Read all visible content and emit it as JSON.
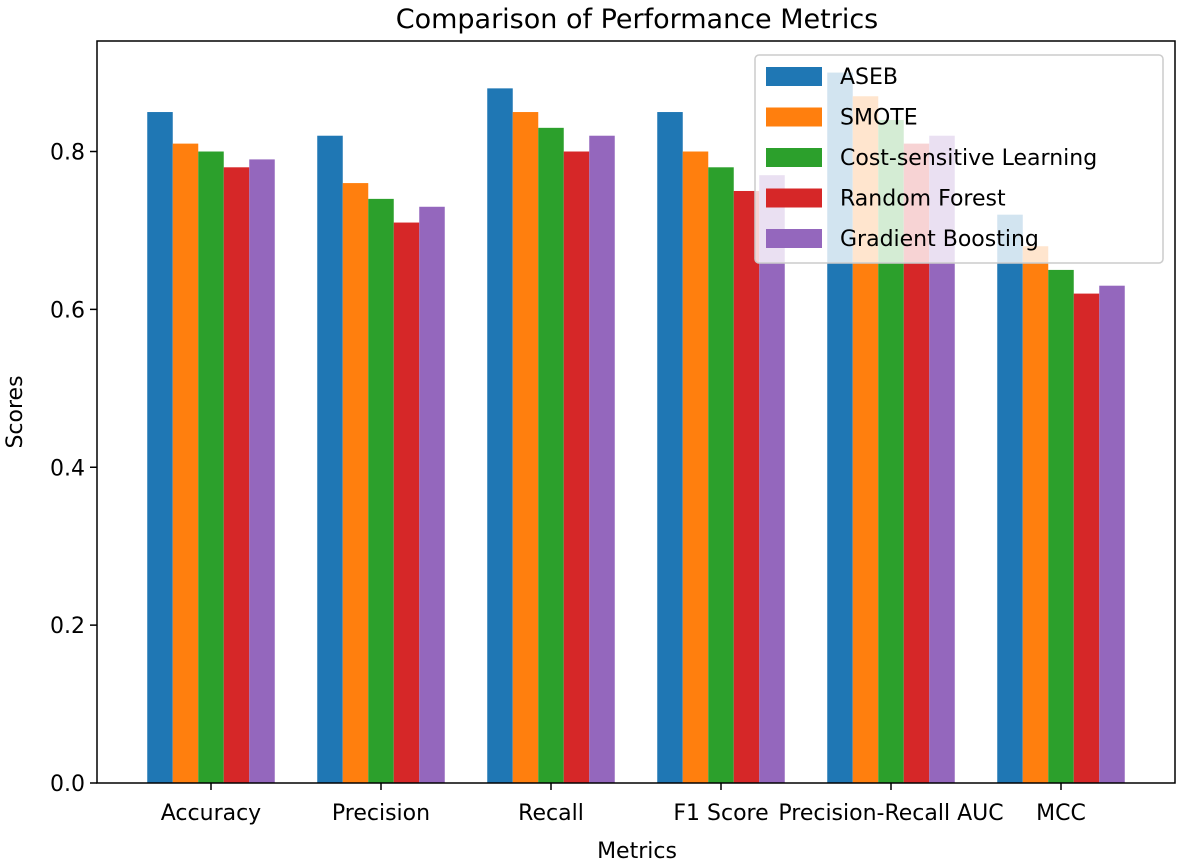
{
  "chart_data": {
    "type": "bar",
    "title": "Comparison of Performance Metrics",
    "xlabel": "Metrics",
    "ylabel": "Scores",
    "categories": [
      "Accuracy",
      "Precision",
      "Recall",
      "F1 Score",
      "Precision-Recall AUC",
      "MCC"
    ],
    "series": [
      {
        "name": "ASEB",
        "color": "#1f77b4",
        "values": [
          0.85,
          0.82,
          0.88,
          0.85,
          0.9,
          0.72
        ]
      },
      {
        "name": "SMOTE",
        "color": "#ff7f0e",
        "values": [
          0.81,
          0.76,
          0.85,
          0.8,
          0.87,
          0.68
        ]
      },
      {
        "name": "Cost-sensitive Learning",
        "color": "#2ca02c",
        "values": [
          0.8,
          0.74,
          0.83,
          0.78,
          0.84,
          0.65
        ]
      },
      {
        "name": "Random Forest",
        "color": "#d62728",
        "values": [
          0.78,
          0.71,
          0.8,
          0.75,
          0.81,
          0.62
        ]
      },
      {
        "name": "Gradient Boosting",
        "color": "#9467bd",
        "values": [
          0.79,
          0.73,
          0.82,
          0.77,
          0.82,
          0.63
        ]
      }
    ],
    "ylim": [
      0,
      0.94
    ],
    "yticks": [
      "0.0",
      "0.2",
      "0.4",
      "0.6",
      "0.8"
    ],
    "legend_position": "top-right",
    "grid": false
  }
}
